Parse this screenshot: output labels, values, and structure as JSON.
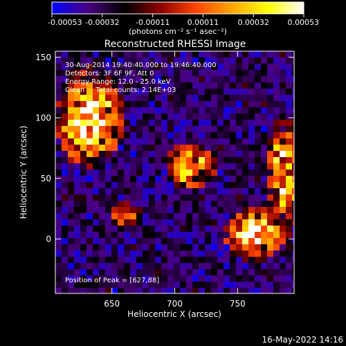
{
  "colorbar": {
    "ticks": [
      "-0.00053",
      "-0.00032",
      "-0.00011",
      "0.00011",
      "0.00032",
      "0.00053"
    ],
    "unit_label": "(photons cm⁻² s⁻¹ asec⁻²)",
    "range": [
      -0.00053,
      0.00053
    ],
    "stops": [
      "#0000ff",
      "#4b0082",
      "#000000",
      "#8b0000",
      "#ff4500",
      "#ffa500",
      "#ffff00",
      "#ffffff"
    ]
  },
  "chart_data": {
    "type": "heatmap",
    "title": "Reconstructed RHESSI Image",
    "xlabel": "Heliocentric X (arcsec)",
    "ylabel": "Heliocentric Y (arcsec)",
    "xlim": [
      605,
      795
    ],
    "ylim": [
      -45,
      155
    ],
    "xticks": [
      650,
      700,
      750
    ],
    "yticks": [
      0,
      50,
      100,
      150
    ],
    "annotations": [
      "30-Aug-2014 19:40:40.000 to 19:46:40.000",
      "Detectors: 3F 6F 9F, Att 0",
      "Energy Range: 12.0 - 25.0 keV",
      "Clean     Total counts: 2.14E+03"
    ],
    "peak_label": "Position of Peak = [627,88]",
    "peak": [
      627,
      88
    ],
    "sources": [
      {
        "x": 632,
        "y": 100,
        "sx": 14,
        "sy": 22,
        "amp": 1.0
      },
      {
        "x": 712,
        "y": 60,
        "sx": 11,
        "sy": 11,
        "amp": 0.8
      },
      {
        "x": 763,
        "y": 3,
        "sx": 12,
        "sy": 12,
        "amp": 1.0
      },
      {
        "x": 788,
        "y": 55,
        "sx": 9,
        "sy": 25,
        "amp": 0.85
      },
      {
        "x": 660,
        "y": 20,
        "sx": 10,
        "sy": 10,
        "amp": 0.35
      }
    ]
  },
  "footer": {
    "timestamp": "16-May-2022 14:16"
  }
}
